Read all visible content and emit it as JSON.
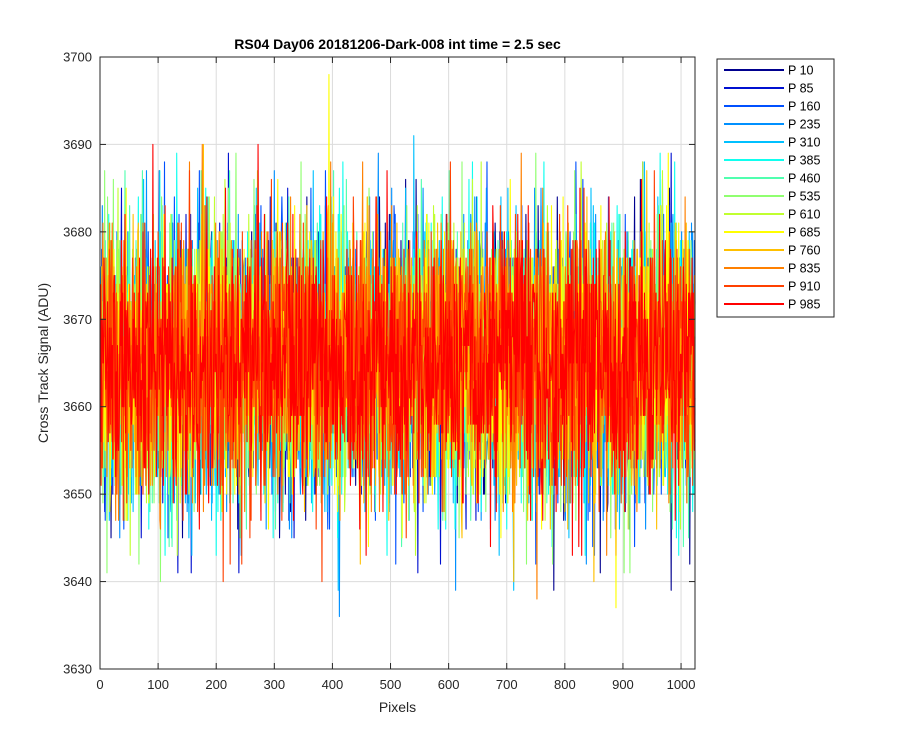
{
  "chart_data": {
    "type": "line",
    "title": "RS04 Day06 20181206-Dark-008 int time = 2.5 sec",
    "xlabel": "Pixels",
    "ylabel": "Cross Track Signal (ADU)",
    "xlim": [
      0,
      1024
    ],
    "ylim": [
      3630,
      3700
    ],
    "xticks": [
      0,
      100,
      200,
      300,
      400,
      500,
      600,
      700,
      800,
      900,
      1000
    ],
    "yticks": [
      3630,
      3640,
      3650,
      3660,
      3670,
      3680,
      3690,
      3700
    ],
    "grid": true,
    "legend_position": "outside-top-right",
    "noise_model": {
      "mean": 3665,
      "std": 8
    },
    "series": [
      {
        "name": "P 10",
        "color": "#00008f",
        "min": 3639,
        "max": 3686
      },
      {
        "name": "P 85",
        "color": "#0010d0",
        "min": 3641,
        "max": 3689
      },
      {
        "name": "P 160",
        "color": "#0050ff",
        "min": 3642,
        "max": 3688
      },
      {
        "name": "P 235",
        "color": "#0090ff",
        "min": 3636,
        "max": 3689
      },
      {
        "name": "P 310",
        "color": "#00c0ff",
        "min": 3639,
        "max": 3691
      },
      {
        "name": "P 385",
        "color": "#10ffef",
        "min": 3643,
        "max": 3689
      },
      {
        "name": "P 460",
        "color": "#50ffaf",
        "min": 3644,
        "max": 3687
      },
      {
        "name": "P 535",
        "color": "#90ff70",
        "min": 3640,
        "max": 3689
      },
      {
        "name": "P 610",
        "color": "#c0ff30",
        "min": 3643,
        "max": 3688
      },
      {
        "name": "P 685",
        "color": "#ffff00",
        "min": 3637,
        "max": 3698
      },
      {
        "name": "P 760",
        "color": "#ffc000",
        "min": 3640,
        "max": 3690
      },
      {
        "name": "P 835",
        "color": "#ff8000",
        "min": 3638,
        "max": 3690
      },
      {
        "name": "P 910",
        "color": "#ff4000",
        "min": 3640,
        "max": 3688
      },
      {
        "name": "P 985",
        "color": "#ff0000",
        "min": 3643,
        "max": 3690
      }
    ]
  }
}
